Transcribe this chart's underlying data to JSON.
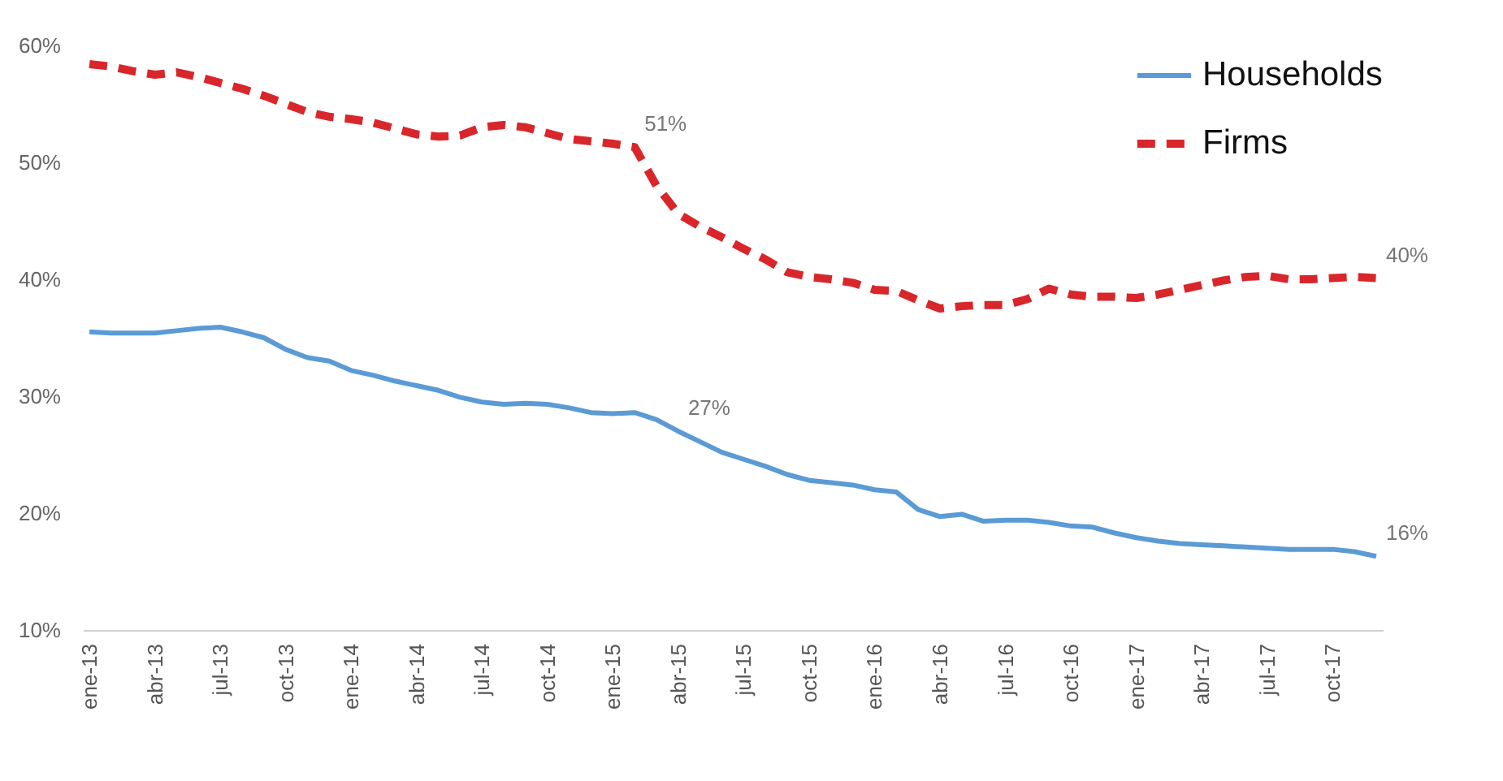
{
  "chart_data": {
    "type": "line",
    "categories": [
      "ene-13",
      null,
      null,
      "abr-13",
      null,
      null,
      "jul-13",
      null,
      null,
      "oct-13",
      null,
      null,
      "ene-14",
      null,
      null,
      "abr-14",
      null,
      null,
      "jul-14",
      null,
      null,
      "oct-14",
      null,
      null,
      "ene-15",
      null,
      null,
      "abr-15",
      null,
      null,
      "jul-15",
      null,
      null,
      "oct-15",
      null,
      null,
      "ene-16",
      null,
      null,
      "abr-16",
      null,
      null,
      "jul-16",
      null,
      null,
      "oct-16",
      null,
      null,
      "ene-17",
      null,
      null,
      "abr-17",
      null,
      null,
      "jul-17",
      null,
      null,
      "oct-17",
      null,
      null
    ],
    "series": [
      {
        "name": "Households",
        "color": "#5b9bd5",
        "line_style": "solid",
        "values": [
          35.5,
          35.4,
          35.4,
          35.4,
          35.6,
          35.8,
          35.9,
          35.5,
          35.0,
          34.0,
          33.3,
          33.0,
          32.2,
          31.8,
          31.3,
          30.9,
          30.5,
          29.9,
          29.5,
          29.3,
          29.4,
          29.3,
          29.0,
          28.6,
          28.5,
          28.6,
          28.0,
          27.0,
          26.1,
          25.2,
          24.6,
          24.0,
          23.3,
          22.8,
          22.6,
          22.4,
          22.0,
          21.8,
          20.3,
          19.7,
          19.9,
          19.3,
          19.4,
          19.4,
          19.2,
          18.9,
          18.8,
          18.3,
          17.9,
          17.6,
          17.4,
          17.3,
          17.2,
          17.1,
          17.0,
          16.9,
          16.9,
          16.9,
          16.7,
          16.3
        ],
        "value_labels": [
          null,
          null,
          null,
          null,
          null,
          null,
          null,
          null,
          null,
          null,
          null,
          null,
          null,
          null,
          null,
          null,
          null,
          null,
          null,
          null,
          null,
          null,
          null,
          null,
          null,
          null,
          null,
          "27%",
          null,
          null,
          null,
          null,
          null,
          null,
          null,
          null,
          null,
          null,
          null,
          null,
          null,
          null,
          null,
          null,
          null,
          null,
          null,
          null,
          null,
          null,
          null,
          null,
          null,
          null,
          null,
          null,
          null,
          null,
          null,
          "16%"
        ]
      },
      {
        "name": "Firms",
        "color": "#d9262b",
        "line_style": "dashed",
        "values": [
          58.4,
          58.2,
          57.8,
          57.5,
          57.7,
          57.3,
          56.8,
          56.3,
          55.7,
          55.0,
          54.3,
          53.9,
          53.7,
          53.4,
          52.9,
          52.4,
          52.2,
          52.3,
          53.0,
          53.2,
          53.0,
          52.5,
          52.0,
          51.8,
          51.6,
          51.3,
          48.0,
          45.6,
          44.5,
          43.6,
          42.6,
          41.7,
          40.6,
          40.2,
          40.0,
          39.7,
          39.1,
          39.0,
          38.2,
          37.5,
          37.7,
          37.8,
          37.8,
          38.3,
          39.2,
          38.7,
          38.5,
          38.5,
          38.4,
          38.7,
          39.1,
          39.5,
          39.9,
          40.2,
          40.3,
          40.0,
          40.0,
          40.1,
          40.2,
          40.1
        ],
        "value_labels": [
          null,
          null,
          null,
          null,
          null,
          null,
          null,
          null,
          null,
          null,
          null,
          null,
          null,
          null,
          null,
          null,
          null,
          null,
          null,
          null,
          null,
          null,
          null,
          null,
          null,
          "51%",
          null,
          null,
          null,
          null,
          null,
          null,
          null,
          null,
          null,
          null,
          null,
          null,
          null,
          null,
          null,
          null,
          null,
          null,
          null,
          null,
          null,
          null,
          null,
          null,
          null,
          null,
          null,
          null,
          null,
          null,
          null,
          null,
          null,
          "40%"
        ]
      }
    ],
    "ylim": [
      10,
      60
    ],
    "yticks": [
      {
        "value": 10,
        "label": "10%"
      },
      {
        "value": 20,
        "label": "20%"
      },
      {
        "value": 30,
        "label": "30%"
      },
      {
        "value": 40,
        "label": "40%"
      },
      {
        "value": 50,
        "label": "50%"
      },
      {
        "value": 60,
        "label": "60%"
      }
    ],
    "legend": "top right"
  }
}
